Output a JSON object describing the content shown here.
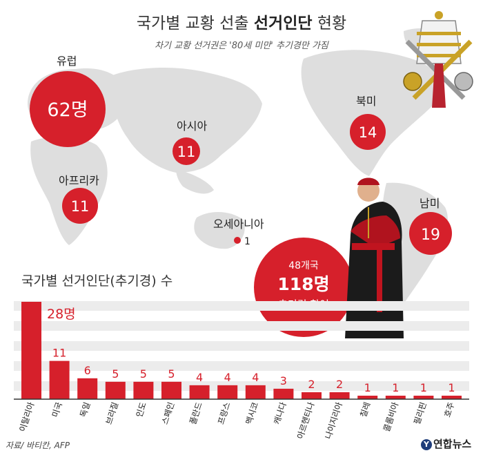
{
  "header": {
    "title_plain": "국가별 교황 선출 ",
    "title_bold": "선거인단",
    "title_tail": " 현황",
    "subtitle": "차기 교황 선거권은 '80세 미만' 추기경만 가짐"
  },
  "regions": [
    {
      "name": "유럽",
      "value": "62명"
    },
    {
      "name": "아시아",
      "value": "11"
    },
    {
      "name": "북미",
      "value": "14"
    },
    {
      "name": "아프리카",
      "value": "11"
    },
    {
      "name": "오세아니아",
      "value": "1"
    },
    {
      "name": "남미",
      "value": "19"
    }
  ],
  "summary": {
    "line1": "48개국",
    "line2": "118명",
    "line3": "추기경 참여"
  },
  "chart_title": "국가별 선거인단(추기경) 수",
  "source": "자료/ 바티칸, AFP",
  "logo": "연합뉴스",
  "colors": {
    "accent": "#d6202b",
    "map": "#dcdcdc",
    "band": "#ececec"
  },
  "chart_data": {
    "type": "bar",
    "categories": [
      "이탈리아",
      "미국",
      "독일",
      "브라질",
      "인도",
      "스페인",
      "폴란드",
      "프랑스",
      "멕시코",
      "캐나다",
      "아르헨티나",
      "나이지리아",
      "칠레",
      "콜롬비아",
      "필리핀",
      "호주"
    ],
    "values": [
      28,
      11,
      6,
      5,
      5,
      5,
      4,
      4,
      4,
      3,
      2,
      2,
      1,
      1,
      1,
      1
    ],
    "value_labels": [
      "28명",
      "11",
      "6",
      "5",
      "5",
      "5",
      "4",
      "4",
      "4",
      "3",
      "2",
      "2",
      "1",
      "1",
      "1",
      "1"
    ],
    "title": "국가별 선거인단(추기경) 수",
    "xlabel": "",
    "ylabel": "",
    "ylim": [
      0,
      28
    ]
  }
}
